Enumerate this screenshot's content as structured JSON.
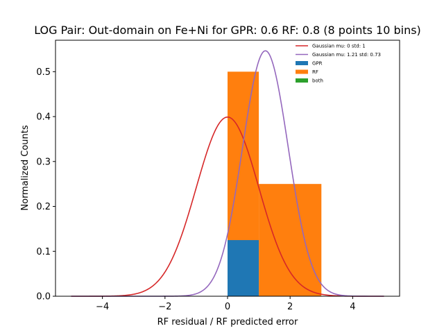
{
  "chart_data": {
    "type": "bar",
    "title": "LOG Pair: Out-domain on Fe+Ni for GPR: 0.6 RF: 0.8 (8 points 10 bins)",
    "xlabel": "RF residual / RF predicted error",
    "ylabel": "Normalized Counts",
    "xlim": [
      -5.5,
      5.5
    ],
    "ylim": [
      0,
      0.57
    ],
    "xticks": [
      -4,
      -2,
      0,
      2,
      4
    ],
    "xtick_labels": [
      "−4",
      "−2",
      "0",
      "2",
      "4"
    ],
    "yticks": [
      0.0,
      0.1,
      0.2,
      0.3,
      0.4,
      0.5
    ],
    "ytick_labels": [
      "0.0",
      "0.1",
      "0.2",
      "0.3",
      "0.4",
      "0.5"
    ],
    "grid": false,
    "legend_position": "top-right",
    "histograms": [
      {
        "name": "RF",
        "color": "#ff7f0e",
        "bins": [
          {
            "x0": 0,
            "x1": 1,
            "value": 0.5
          },
          {
            "x0": 1,
            "x1": 3,
            "value": 0.25
          }
        ]
      },
      {
        "name": "GPR",
        "color": "#1f77b4",
        "bins": [
          {
            "x0": 0,
            "x1": 1,
            "value": 0.125
          }
        ]
      },
      {
        "name": "both",
        "color": "#2ca02c",
        "bins": []
      }
    ],
    "curves": [
      {
        "name": "Gaussian mu: 0 std: 1",
        "color": "#d62728",
        "mu": 0,
        "std": 1,
        "x_range": [
          -5,
          5
        ]
      },
      {
        "name": "Gaussian mu: 1.21 std: 0.73",
        "color": "#9467bd",
        "mu": 1.21,
        "std": 0.73,
        "x_range": [
          -5,
          5
        ]
      }
    ],
    "legend": [
      {
        "label": "Gaussian mu: 0 std: 1",
        "kind": "line",
        "color": "#d62728"
      },
      {
        "label": "Gaussian mu: 1.21 std: 0.73",
        "kind": "line",
        "color": "#9467bd"
      },
      {
        "label": "GPR",
        "kind": "patch",
        "color": "#1f77b4"
      },
      {
        "label": "RF",
        "kind": "patch",
        "color": "#ff7f0e"
      },
      {
        "label": "both",
        "kind": "patch",
        "color": "#2ca02c"
      }
    ]
  }
}
